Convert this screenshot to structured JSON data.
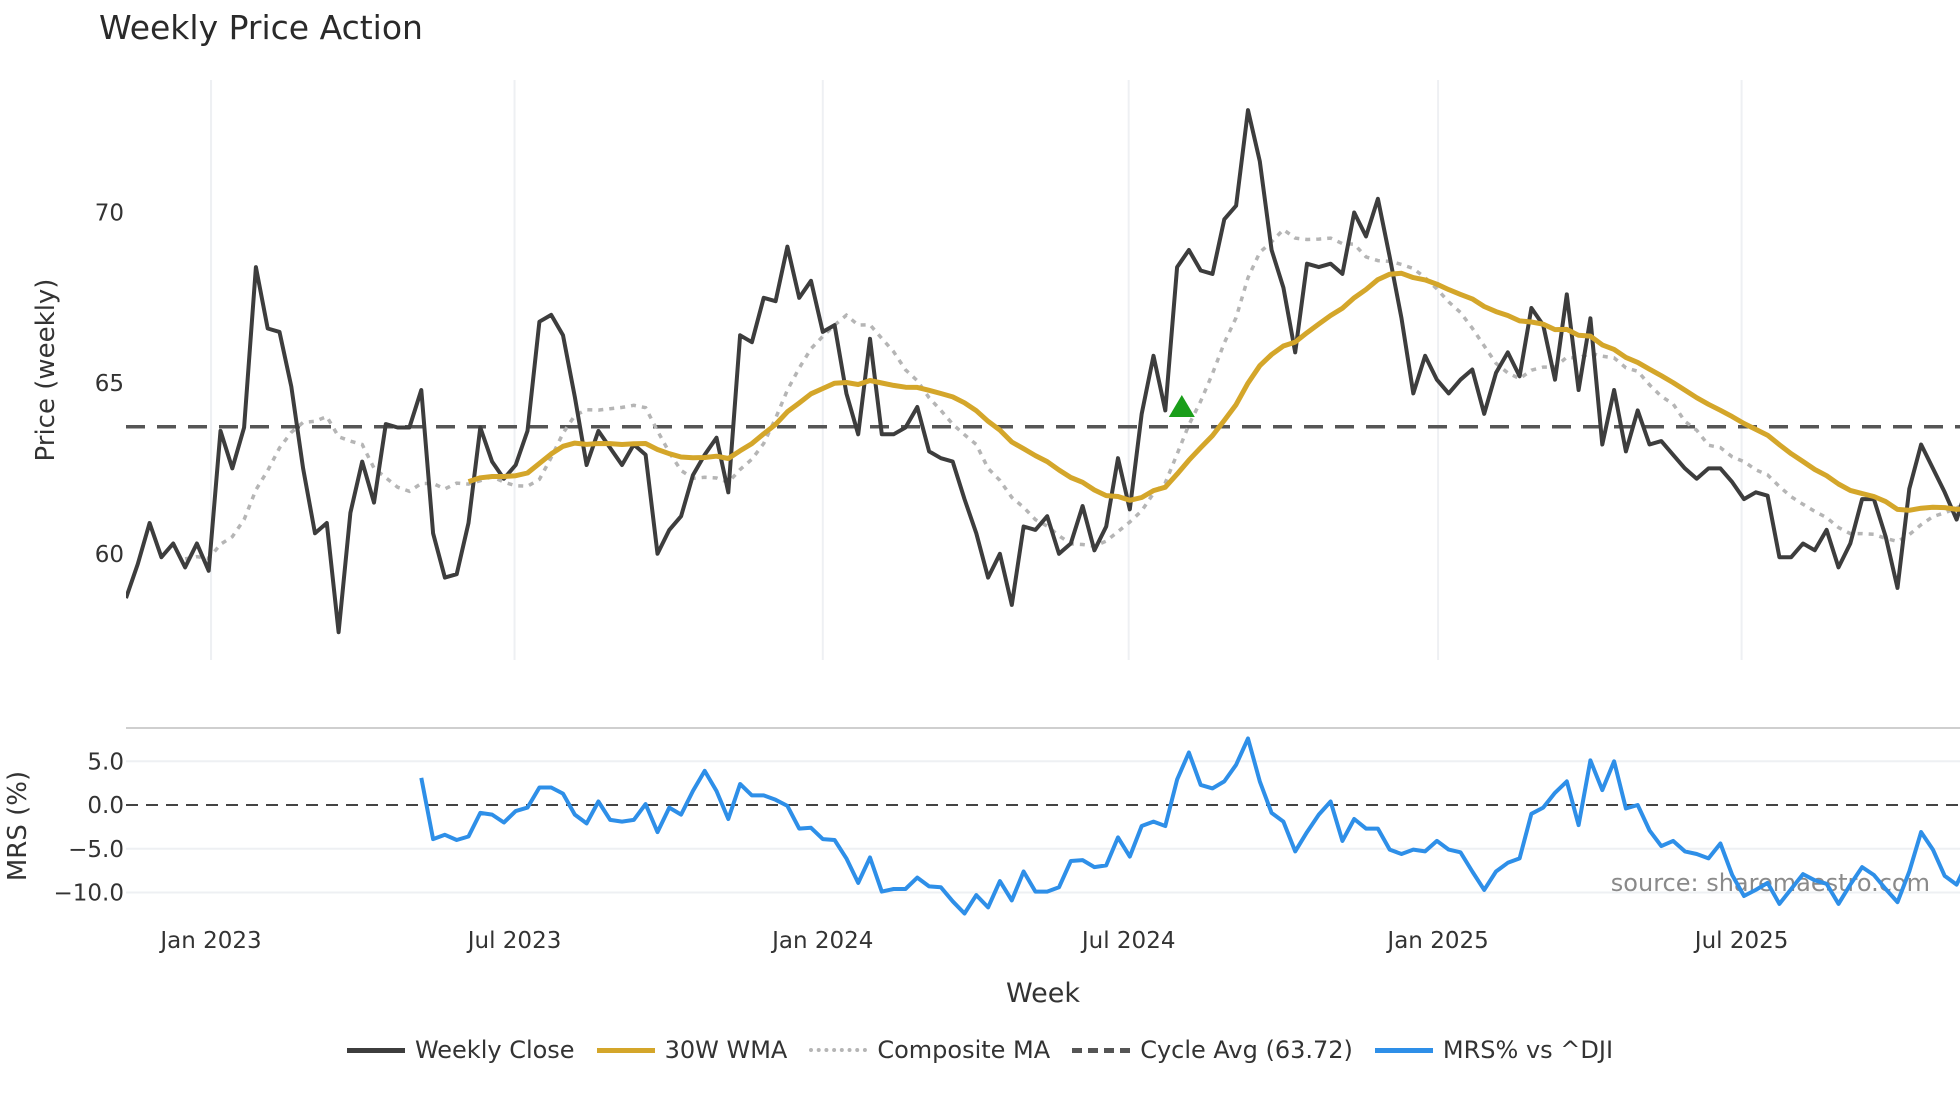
{
  "chart_data": {
    "type": "line",
    "title": "Weekly Price Action",
    "xlabel": "Week",
    "ylabel": "Price (weekly)",
    "ylabel_lower": "MRS (%)",
    "ylim": [
      57.2,
      74.0
    ],
    "ylim_lower": [
      -13.5,
      8.8
    ],
    "yticks": [
      60,
      65,
      70
    ],
    "yticks_lower": [
      "5.0",
      "0.0",
      "−5.0",
      "−10.0"
    ],
    "yticks_lower_values": [
      5,
      0,
      -5,
      -10
    ],
    "xticks": [
      {
        "label": "Jan 2023",
        "week": 7.2
      },
      {
        "label": "Jul 2023",
        "week": 32.9
      },
      {
        "label": "Jan 2024",
        "week": 59.0
      },
      {
        "label": "Jul 2024",
        "week": 84.9
      },
      {
        "label": "Jan 2025",
        "week": 111.1
      },
      {
        "label": "Jul 2025",
        "week": 136.8
      }
    ],
    "grid": true,
    "legend_position": "bottom",
    "cycle_avg": 63.72,
    "signal_marker": {
      "week": 89.4,
      "price": 64.3,
      "color": "#1a9e1a"
    },
    "watermark": "source: sharemaestro.com",
    "colors": {
      "close": "#3d3d3d",
      "wma": "#d4a62a",
      "composite": "#b5b5b5",
      "cycle": "#555555",
      "mrs": "#2e8fe8"
    },
    "legend": [
      {
        "label": "Weekly Close",
        "style": "solid",
        "color": "#3d3d3d"
      },
      {
        "label": "30W WMA",
        "style": "solid",
        "color": "#d4a62a"
      },
      {
        "label": "Composite MA",
        "style": "dotted",
        "color": "#b5b5b5"
      },
      {
        "label": "Cycle Avg (63.72)",
        "style": "dashed",
        "color": "#555555"
      },
      {
        "label": "MRS% vs ^DJI",
        "style": "solid",
        "color": "#2e8fe8"
      }
    ],
    "series": [
      {
        "name": "Weekly Close",
        "start_week": 0,
        "values": [
          58.7,
          59.7,
          60.9,
          59.9,
          60.3,
          59.6,
          60.3,
          59.5,
          63.6,
          62.5,
          63.7,
          68.4,
          66.6,
          66.5,
          64.9,
          62.5,
          60.6,
          60.9,
          57.7,
          61.2,
          62.7,
          61.5,
          63.8,
          63.7,
          63.7,
          64.8,
          60.6,
          59.3,
          59.4,
          60.9,
          63.7,
          62.7,
          62.2,
          62.6,
          63.6,
          66.8,
          67.0,
          66.4,
          64.6,
          62.6,
          63.6,
          63.1,
          62.6,
          63.2,
          62.9,
          60.0,
          60.7,
          61.1,
          62.3,
          62.9,
          63.4,
          61.8,
          66.4,
          66.2,
          67.5,
          67.4,
          69.0,
          67.5,
          68.0,
          66.5,
          66.7,
          64.7,
          63.5,
          66.3,
          63.5,
          63.5,
          63.7,
          64.3,
          63.0,
          62.8,
          62.7,
          61.6,
          60.6,
          59.3,
          60.0,
          58.5,
          60.8,
          60.7,
          61.1,
          60.0,
          60.3,
          61.4,
          60.1,
          60.8,
          62.8,
          61.3,
          64.1,
          65.8,
          64.2,
          68.4,
          68.9,
          68.3,
          68.2,
          69.8,
          70.2,
          73.0,
          71.5,
          68.9,
          67.8,
          65.9,
          68.5,
          68.4,
          68.5,
          68.2,
          70.0,
          69.3,
          70.4,
          68.7,
          66.9,
          64.7,
          65.8,
          65.1,
          64.7,
          65.1,
          65.4,
          64.1,
          65.3,
          65.9,
          65.2,
          67.2,
          66.7,
          65.1,
          67.6,
          64.8,
          66.9,
          63.2,
          64.8,
          63.0,
          64.2,
          63.2,
          63.3,
          62.9,
          62.5,
          62.2,
          62.5,
          62.5,
          62.1,
          61.6,
          61.8,
          61.7,
          59.9,
          59.9,
          60.3,
          60.1,
          60.7,
          59.6,
          60.3,
          61.6,
          61.6,
          60.5,
          59.0,
          61.9,
          63.2,
          62.5,
          61.8,
          61.0,
          62.1
        ]
      },
      {
        "name": "MRS% vs ^DJI",
        "start_week": 25,
        "values": [
          3.1,
          -3.9,
          -3.4,
          -4.0,
          -3.6,
          -0.9,
          -1.1,
          -2.0,
          -0.7,
          -0.3,
          2.0,
          2.0,
          1.3,
          -1.1,
          -2.1,
          0.4,
          -1.7,
          -1.9,
          -1.7,
          0.1,
          -3.1,
          -0.3,
          -1.1,
          1.6,
          3.9,
          1.6,
          -1.6,
          2.4,
          1.1,
          1.1,
          0.6,
          -0.1,
          -2.7,
          -2.6,
          -3.9,
          -4.0,
          -6.1,
          -8.9,
          -6.0,
          -9.9,
          -9.6,
          -9.6,
          -8.3,
          -9.3,
          -9.4,
          -11.0,
          -12.4,
          -10.3,
          -11.7,
          -8.7,
          -10.9,
          -7.6,
          -9.9,
          -9.9,
          -9.4,
          -6.4,
          -6.3,
          -7.1,
          -6.9,
          -3.7,
          -5.9,
          -2.4,
          -1.9,
          -2.4,
          2.9,
          6.0,
          2.3,
          1.9,
          2.7,
          4.6,
          7.6,
          2.7,
          -0.9,
          -1.9,
          -5.3,
          -3.1,
          -1.1,
          0.4,
          -4.1,
          -1.6,
          -2.7,
          -2.7,
          -5.1,
          -5.6,
          -5.1,
          -5.3,
          -4.1,
          -5.1,
          -5.4,
          -7.6,
          -9.7,
          -7.6,
          -6.6,
          -6.1,
          -1.0,
          -0.3,
          1.4,
          2.7,
          -2.3,
          5.1,
          1.7,
          5.0,
          -0.4,
          0.0,
          -2.9,
          -4.7,
          -4.1,
          -5.3,
          -5.6,
          -6.1,
          -4.4,
          -8.0,
          -10.4,
          -9.7,
          -8.9,
          -11.3,
          -9.6,
          -7.9,
          -8.6,
          -9.0,
          -11.3,
          -9.1,
          -7.1,
          -8.0,
          -9.6,
          -11.1,
          -7.6,
          -3.1,
          -5.1,
          -8.1,
          -9.1,
          -6.3
        ]
      }
    ]
  }
}
